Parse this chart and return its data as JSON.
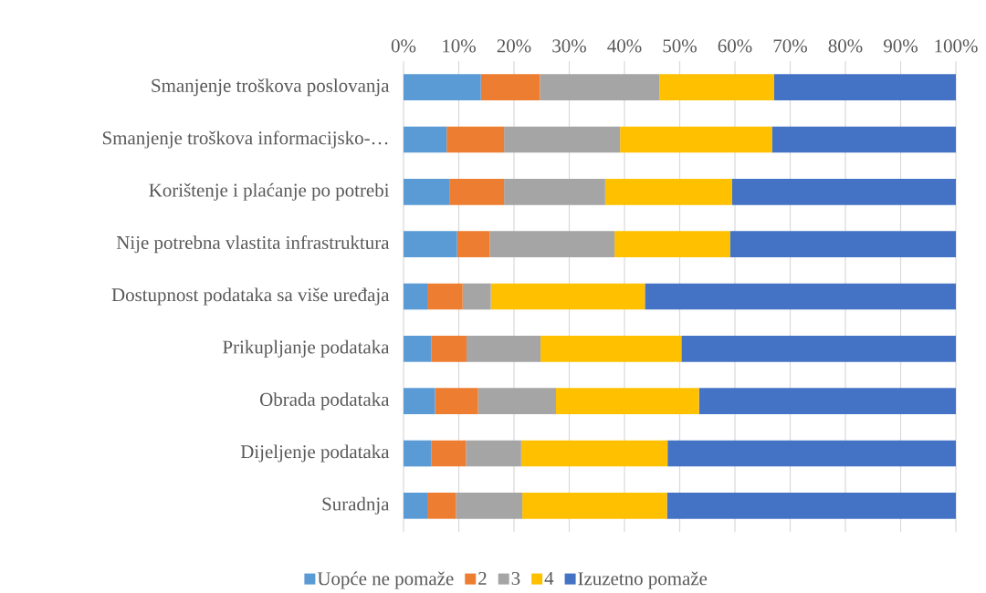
{
  "chart_data": {
    "type": "bar",
    "orientation": "horizontal",
    "stacked": true,
    "categories": [
      "Smanjenje troškova poslovanja",
      "Smanjenje troškova informacijsko-…",
      "Korištenje i plaćanje po potrebi",
      "Nije potrebna vlastita infrastruktura",
      "Dostupnost podataka sa više uređaja",
      "Prikupljanje podataka",
      "Obrada podataka",
      "Dijeljenje podataka",
      "Suradnja"
    ],
    "series": [
      {
        "name": "Uopće ne pomaže",
        "color": "#5b9bd5",
        "values": [
          14.0,
          7.8,
          8.4,
          9.7,
          4.3,
          5.0,
          5.7,
          5.0,
          4.3
        ]
      },
      {
        "name": "2",
        "color": "#ed7d31",
        "values": [
          10.7,
          10.4,
          9.8,
          5.9,
          6.4,
          6.4,
          7.8,
          6.3,
          5.2
        ]
      },
      {
        "name": "3",
        "color": "#a5a5a5",
        "values": [
          21.6,
          21.0,
          18.3,
          22.6,
          5.1,
          13.4,
          14.1,
          10.0,
          12.0
        ]
      },
      {
        "name": "4",
        "color": "#ffc000",
        "values": [
          20.8,
          27.5,
          23.0,
          20.9,
          27.9,
          25.5,
          25.9,
          26.5,
          26.2
        ]
      },
      {
        "name": "Izuzetno pomaže",
        "color": "#4472c4",
        "values": [
          32.9,
          33.3,
          40.5,
          40.9,
          56.3,
          49.7,
          46.5,
          52.2,
          52.3
        ]
      }
    ],
    "xlim": [
      0,
      100
    ],
    "xticks": [
      {
        "value": 0,
        "label": "0%"
      },
      {
        "value": 10,
        "label": "10%"
      },
      {
        "value": 20,
        "label": "20%"
      },
      {
        "value": 30,
        "label": "30%"
      },
      {
        "value": 40,
        "label": "40%"
      },
      {
        "value": 50,
        "label": "50%"
      },
      {
        "value": 60,
        "label": "60%"
      },
      {
        "value": 70,
        "label": "70%"
      },
      {
        "value": 80,
        "label": "80%"
      },
      {
        "value": 90,
        "label": "90%"
      },
      {
        "value": 100,
        "label": "100%"
      }
    ],
    "grid": "x",
    "legend": "bottom"
  }
}
